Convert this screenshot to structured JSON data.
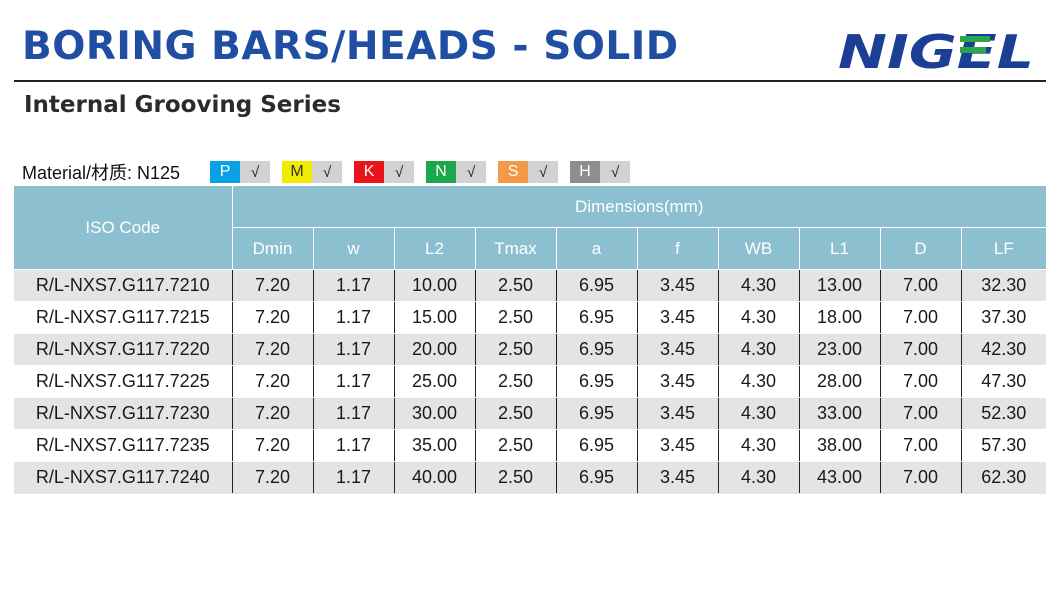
{
  "header": {
    "title": "BORING BARS/HEADS - SOLID",
    "subtitle": "Internal Grooving Series",
    "logo_text": "NIGEL"
  },
  "material": {
    "label": "Material/材质:  N125",
    "badges": [
      {
        "letter": "P",
        "check": "√",
        "color": "#0aa0e6"
      },
      {
        "letter": "M",
        "check": "√",
        "color": "#f2ea00"
      },
      {
        "letter": "K",
        "check": "√",
        "color": "#e8131b"
      },
      {
        "letter": "N",
        "check": "√",
        "color": "#1aa84b"
      },
      {
        "letter": "S",
        "check": "√",
        "color": "#f39a4a"
      },
      {
        "letter": "H",
        "check": "√",
        "color": "#8e8e8e"
      }
    ]
  },
  "table": {
    "iso_header": "ISO Code",
    "dimensions_header": "Dimensions(mm)",
    "columns": [
      "Dmin",
      "w",
      "L2",
      "Tmax",
      "a",
      "f",
      "WB",
      "L1",
      "D",
      "LF"
    ],
    "rows": [
      [
        "R/L-NXS7.G117.7210",
        "7.20",
        "1.17",
        "10.00",
        "2.50",
        "6.95",
        "3.45",
        "4.30",
        "13.00",
        "7.00",
        "32.30"
      ],
      [
        "R/L-NXS7.G117.7215",
        "7.20",
        "1.17",
        "15.00",
        "2.50",
        "6.95",
        "3.45",
        "4.30",
        "18.00",
        "7.00",
        "37.30"
      ],
      [
        "R/L-NXS7.G117.7220",
        "7.20",
        "1.17",
        "20.00",
        "2.50",
        "6.95",
        "3.45",
        "4.30",
        "23.00",
        "7.00",
        "42.30"
      ],
      [
        "R/L-NXS7.G117.7225",
        "7.20",
        "1.17",
        "25.00",
        "2.50",
        "6.95",
        "3.45",
        "4.30",
        "28.00",
        "7.00",
        "47.30"
      ],
      [
        "R/L-NXS7.G117.7230",
        "7.20",
        "1.17",
        "30.00",
        "2.50",
        "6.95",
        "3.45",
        "4.30",
        "33.00",
        "7.00",
        "52.30"
      ],
      [
        "R/L-NXS7.G117.7235",
        "7.20",
        "1.17",
        "35.00",
        "2.50",
        "6.95",
        "3.45",
        "4.30",
        "38.00",
        "7.00",
        "57.30"
      ],
      [
        "R/L-NXS7.G117.7240",
        "7.20",
        "1.17",
        "40.00",
        "2.50",
        "6.95",
        "3.45",
        "4.30",
        "43.00",
        "7.00",
        "62.30"
      ]
    ]
  },
  "colors": {
    "title_blue": "#1f4ea3",
    "header_teal": "#8cc0d1",
    "row_gray": "#e4e4e4",
    "logo_blue": "#1c3f96",
    "logo_green": "#2aa748"
  }
}
